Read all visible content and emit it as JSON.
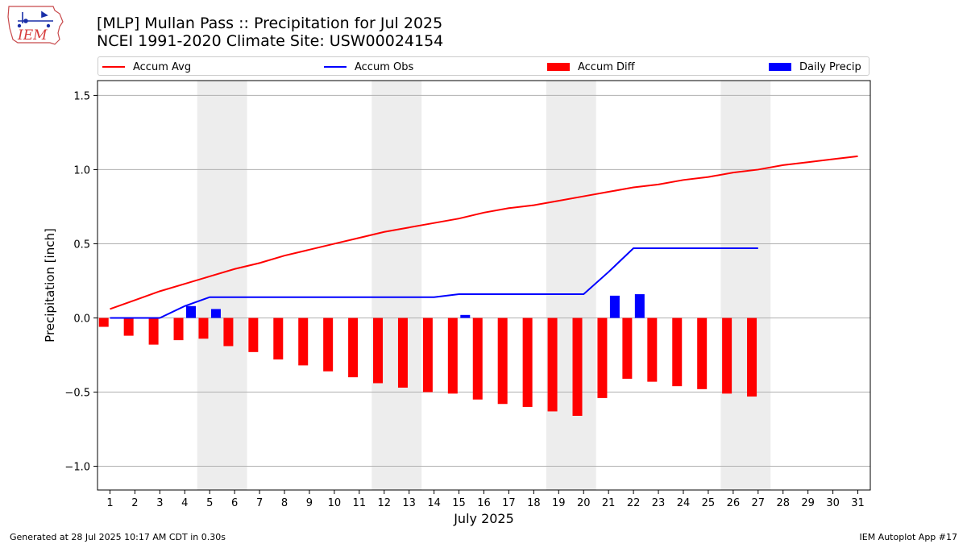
{
  "header": {
    "title_line1": "[MLP] Mullan Pass :: Precipitation for Jul 2025",
    "title_line2": "NCEI 1991-2020 Climate Site: USW00024154",
    "logo_text": "IEM"
  },
  "legend": {
    "items": [
      {
        "label": "Accum Avg",
        "color": "#ff0000",
        "kind": "line"
      },
      {
        "label": "Accum Obs",
        "color": "#0000ff",
        "kind": "line"
      },
      {
        "label": "Accum Diff",
        "color": "#ff0000",
        "kind": "bar"
      },
      {
        "label": "Daily Precip",
        "color": "#0000ff",
        "kind": "bar"
      }
    ]
  },
  "chart_data": {
    "type": "bar",
    "xlabel": "July 2025",
    "ylabel": "Precipitation [inch]",
    "ylim": [
      -1.16,
      1.6
    ],
    "yticks": [
      -1.0,
      -0.5,
      0.0,
      0.5,
      1.0,
      1.5
    ],
    "ytick_labels": [
      "−1.0",
      "−0.5",
      "0.0",
      "0.5",
      "1.0",
      "1.5"
    ],
    "xlim": [
      0.5,
      31.5
    ],
    "grid": "horizontal",
    "weekend_shading": [
      [
        4.5,
        6.5
      ],
      [
        11.5,
        13.5
      ],
      [
        18.5,
        20.5
      ],
      [
        25.5,
        27.5
      ]
    ],
    "days": [
      1,
      2,
      3,
      4,
      5,
      6,
      7,
      8,
      9,
      10,
      11,
      12,
      13,
      14,
      15,
      16,
      17,
      18,
      19,
      20,
      21,
      22,
      23,
      24,
      25,
      26,
      27,
      28,
      29,
      30,
      31
    ],
    "series": [
      {
        "name": "Accum Avg",
        "type": "line",
        "color": "#ff0000",
        "values": [
          0.06,
          0.12,
          0.18,
          0.23,
          0.28,
          0.33,
          0.37,
          0.42,
          0.46,
          0.5,
          0.54,
          0.58,
          0.61,
          0.64,
          0.67,
          0.71,
          0.74,
          0.76,
          0.79,
          0.82,
          0.85,
          0.88,
          0.9,
          0.93,
          0.95,
          0.98,
          1.0,
          1.03,
          1.05,
          1.07,
          1.09
        ]
      },
      {
        "name": "Accum Obs",
        "type": "line",
        "color": "#0000ff",
        "values": [
          0.0,
          0.0,
          0.0,
          0.08,
          0.14,
          0.14,
          0.14,
          0.14,
          0.14,
          0.14,
          0.14,
          0.14,
          0.14,
          0.14,
          0.16,
          0.16,
          0.16,
          0.16,
          0.16,
          0.16,
          0.31,
          0.47,
          0.47,
          0.47,
          0.47,
          0.47,
          0.47
        ]
      },
      {
        "name": "Accum Diff",
        "type": "bar",
        "color": "#ff0000",
        "values": [
          -0.06,
          -0.12,
          -0.18,
          -0.15,
          -0.14,
          -0.19,
          -0.23,
          -0.28,
          -0.32,
          -0.36,
          -0.4,
          -0.44,
          -0.47,
          -0.5,
          -0.51,
          -0.55,
          -0.58,
          -0.6,
          -0.63,
          -0.66,
          -0.54,
          -0.41,
          -0.43,
          -0.46,
          -0.48,
          -0.51,
          -0.53
        ]
      },
      {
        "name": "Daily Precip",
        "type": "bar",
        "color": "#0000ff",
        "values": [
          0,
          0,
          0,
          0.08,
          0.06,
          0,
          0,
          0,
          0,
          0,
          0,
          0,
          0,
          0,
          0.02,
          0,
          0,
          0,
          0,
          0,
          0.15,
          0.16,
          0,
          0,
          0,
          0,
          0
        ]
      }
    ]
  },
  "footer": {
    "left": "Generated at 28 Jul 2025 10:17 AM CDT in 0.30s",
    "right": "IEM Autoplot App #17"
  }
}
